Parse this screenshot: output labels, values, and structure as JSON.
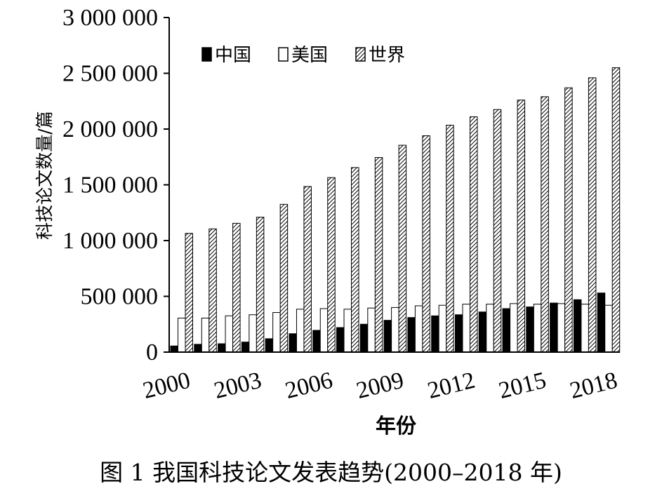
{
  "caption": "图 1  我国科技论文发表趋势(2000–2018 年)",
  "chart_data": {
    "type": "bar",
    "title": "",
    "xlabel": "年份",
    "ylabel": "科技论文数量/篇",
    "ylim": [
      0,
      3000000
    ],
    "yticks": [
      0,
      500000,
      1000000,
      1500000,
      2000000,
      2500000,
      3000000
    ],
    "ytick_labels": [
      "0",
      "500 000",
      "1 000 000",
      "1 500 000",
      "2 000 000",
      "2 500 000",
      "3 000 000"
    ],
    "categories": [
      "2000",
      "2001",
      "2002",
      "2003",
      "2004",
      "2005",
      "2006",
      "2007",
      "2008",
      "2009",
      "2010",
      "2011",
      "2012",
      "2013",
      "2014",
      "2015",
      "2016",
      "2017",
      "2018"
    ],
    "xtick_labels": [
      "2000",
      "2003",
      "2006",
      "2009",
      "2012",
      "2015",
      "2018"
    ],
    "legend_position": "top-left",
    "grid": false,
    "series": [
      {
        "name": "中国",
        "fill": "solid-black",
        "values": [
          55000,
          70000,
          75000,
          90000,
          120000,
          165000,
          195000,
          220000,
          250000,
          285000,
          310000,
          325000,
          335000,
          360000,
          390000,
          405000,
          440000,
          470000,
          530000
        ]
      },
      {
        "name": "美国",
        "fill": "white",
        "values": [
          305000,
          305000,
          325000,
          335000,
          355000,
          385000,
          390000,
          385000,
          395000,
          400000,
          415000,
          420000,
          430000,
          430000,
          435000,
          430000,
          435000,
          430000,
          420000
        ]
      },
      {
        "name": "世界",
        "fill": "hatched",
        "values": [
          1065000,
          1105000,
          1155000,
          1210000,
          1325000,
          1485000,
          1565000,
          1655000,
          1745000,
          1855000,
          1940000,
          2035000,
          2110000,
          2175000,
          2260000,
          2290000,
          2370000,
          2460000,
          2550000
        ]
      }
    ]
  }
}
